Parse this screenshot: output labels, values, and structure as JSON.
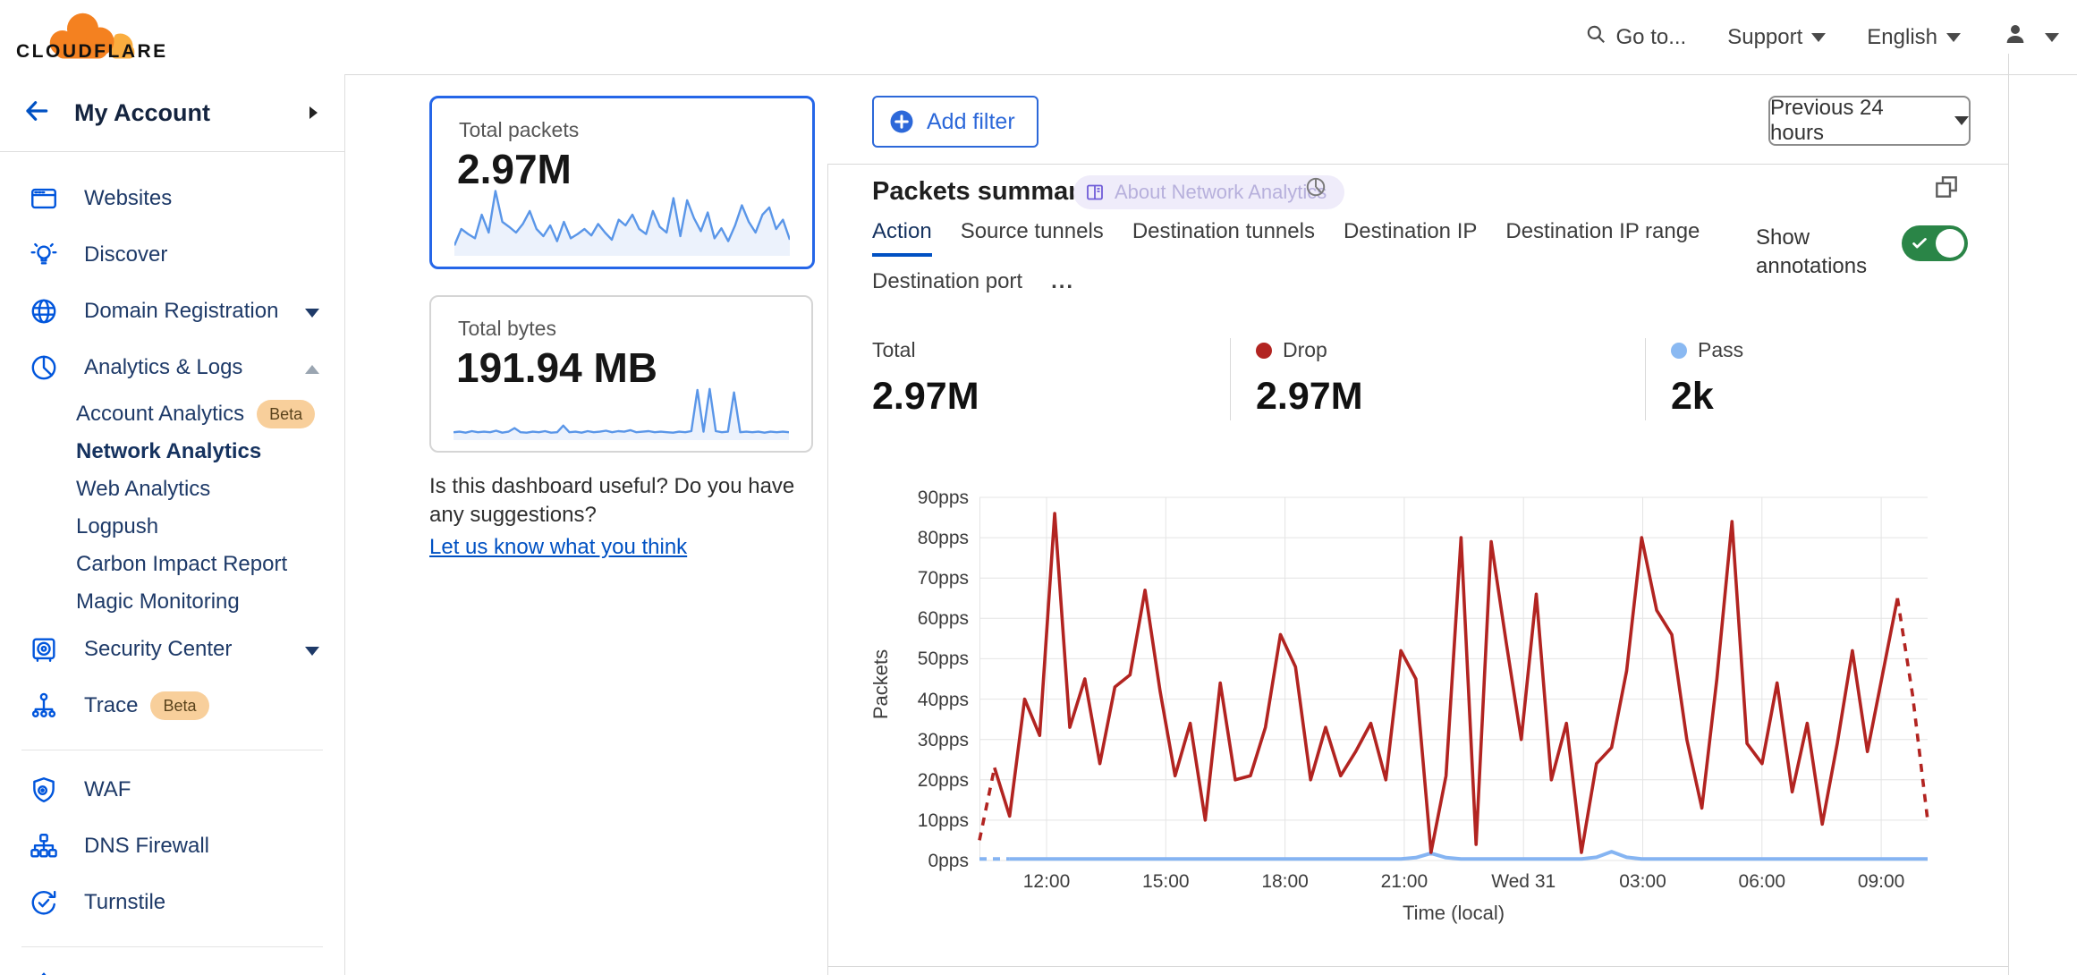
{
  "header": {
    "logo_text": "CLOUDFLARE",
    "goto": "Go to...",
    "support": "Support",
    "language": "English"
  },
  "sidebar": {
    "account_label": "My Account",
    "items": [
      {
        "label": "Websites",
        "icon": "browser"
      },
      {
        "label": "Discover",
        "icon": "lightbulb"
      },
      {
        "label": "Domain Registration",
        "icon": "globe",
        "caret": "down"
      },
      {
        "label": "Analytics & Logs",
        "icon": "pie",
        "caret": "up"
      },
      {
        "label": "Account Analytics",
        "sub": true,
        "badge": "Beta"
      },
      {
        "label": "Network Analytics",
        "sub": true,
        "active": true
      },
      {
        "label": "Web Analytics",
        "sub": true
      },
      {
        "label": "Logpush",
        "sub": true
      },
      {
        "label": "Carbon Impact Report",
        "sub": true
      },
      {
        "label": "Magic Monitoring",
        "sub": true
      },
      {
        "label": "Security Center",
        "icon": "safe",
        "caret": "down"
      },
      {
        "label": "Trace",
        "icon": "trace",
        "badge": "Beta"
      },
      {
        "divider": true
      },
      {
        "label": "WAF",
        "icon": "shield"
      },
      {
        "label": "DNS Firewall",
        "icon": "sitemap"
      },
      {
        "label": "Turnstile",
        "icon": "turnstile"
      },
      {
        "divider": true
      },
      {
        "label": "",
        "icon": "burst",
        "partial": true
      }
    ]
  },
  "cards": [
    {
      "label": "Total packets",
      "value": "2.97M",
      "selected": true,
      "sparkline": [
        12,
        35,
        28,
        22,
        55,
        30,
        88,
        45,
        38,
        30,
        42,
        60,
        35,
        25,
        40,
        18,
        45,
        22,
        28,
        35,
        26,
        42,
        30,
        20,
        48,
        40,
        55,
        35,
        28,
        60,
        38,
        30,
        78,
        25,
        75,
        50,
        32,
        58,
        22,
        36,
        18,
        40,
        68,
        45,
        30,
        55,
        65,
        35,
        48,
        20
      ]
    },
    {
      "label": "Total bytes",
      "value": "191.94 MB",
      "selected": false,
      "sparkline": [
        12,
        13,
        11,
        14,
        12,
        13,
        12,
        15,
        11,
        13,
        20,
        12,
        11,
        13,
        12,
        14,
        11,
        12,
        25,
        12,
        13,
        11,
        14,
        12,
        13,
        15,
        12,
        14,
        13,
        16,
        12,
        13,
        14,
        12,
        13,
        12,
        11,
        13,
        12,
        14,
        95,
        13,
        97,
        14,
        12,
        13,
        90,
        12,
        13,
        12,
        13,
        11,
        13,
        12,
        13,
        12
      ]
    }
  ],
  "feedback": {
    "question": "Is this dashboard useful? Do you have any suggestions?",
    "link": "Let us know what you think"
  },
  "toolbar": {
    "add_filter": "Add filter",
    "time_range": "Previous 24 hours"
  },
  "panel": {
    "title": "Packets summary",
    "about_pill": "About Network Analytics",
    "tabs": [
      "Action",
      "Source tunnels",
      "Destination tunnels",
      "Destination IP",
      "Destination IP range",
      "Destination port"
    ],
    "active_tab": "Action",
    "more_label": "...",
    "show_annotations": "Show annotations",
    "stats": [
      {
        "label": "Total",
        "value": "2.97M",
        "dot": null
      },
      {
        "label": "Drop",
        "value": "2.97M",
        "dot": "#b22421"
      },
      {
        "label": "Pass",
        "value": "2k",
        "dot": "#8ab9f2"
      }
    ]
  },
  "chart_data": {
    "type": "line",
    "title": "Packets summary",
    "xlabel": "Time (local)",
    "ylabel": "Packets",
    "ylim": [
      0,
      90
    ],
    "y_ticks": [
      "0pps",
      "10pps",
      "20pps",
      "30pps",
      "40pps",
      "50pps",
      "60pps",
      "70pps",
      "80pps",
      "90pps"
    ],
    "x_ticks": [
      "12:00",
      "15:00",
      "18:00",
      "21:00",
      "Wed 31",
      "03:00",
      "06:00",
      "09:00"
    ],
    "grid": true,
    "legend_position": "top-stats-row",
    "note": "first and last segments rendered dashed (incomplete data)",
    "series": [
      {
        "name": "Drop",
        "color": "#b22421",
        "values": [
          5,
          23,
          11,
          40,
          31,
          86,
          33,
          45,
          24,
          43,
          46,
          67,
          42,
          21,
          34,
          10,
          44,
          20,
          21,
          33,
          56,
          48,
          20,
          33,
          21,
          27,
          34,
          20,
          52,
          45,
          2,
          21,
          80,
          4,
          79,
          54,
          30,
          66,
          20,
          34,
          2,
          24,
          28,
          47,
          80,
          62,
          56,
          30,
          13,
          45,
          84,
          29,
          24,
          44,
          17,
          34,
          9,
          29,
          52,
          27,
          46,
          65,
          41,
          10
        ]
      },
      {
        "name": "Pass",
        "color": "#85b4f2",
        "values": [
          0.4,
          0.4,
          0.4,
          0.4,
          0.4,
          0.4,
          0.4,
          0.4,
          0.4,
          0.4,
          0.4,
          0.4,
          0.4,
          0.4,
          0.4,
          0.4,
          0.4,
          0.4,
          0.4,
          0.4,
          0.4,
          0.4,
          0.4,
          0.4,
          0.4,
          0.4,
          0.4,
          0.4,
          0.4,
          0.7,
          1.8,
          0.7,
          0.4,
          0.4,
          0.4,
          0.4,
          0.4,
          0.4,
          0.4,
          0.4,
          0.4,
          0.8,
          2.2,
          0.8,
          0.4,
          0.4,
          0.4,
          0.4,
          0.4,
          0.4,
          0.4,
          0.4,
          0.4,
          0.4,
          0.4,
          0.4,
          0.4,
          0.4,
          0.4,
          0.4,
          0.4,
          0.4,
          0.4,
          0.4
        ]
      }
    ]
  }
}
